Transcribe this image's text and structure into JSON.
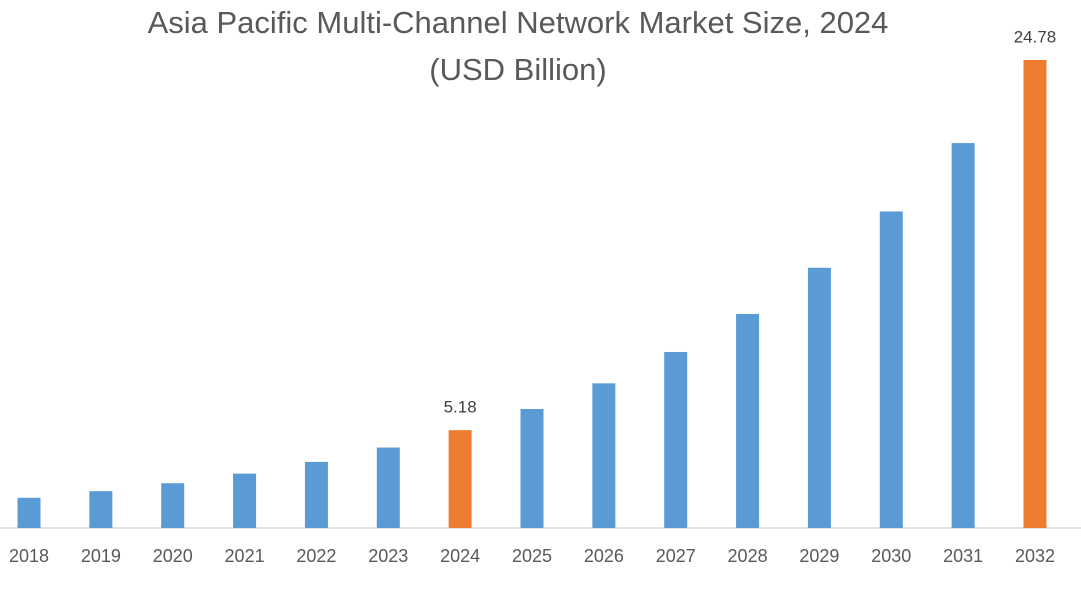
{
  "chart_data": {
    "type": "bar",
    "title": "Asia Pacific Multi-Channel Network Market Size, 2024",
    "subtitle": "(USD Billion)",
    "categories": [
      "2018",
      "2019",
      "2020",
      "2021",
      "2022",
      "2023",
      "2024",
      "2025",
      "2026",
      "2027",
      "2028",
      "2029",
      "2030",
      "2031",
      "2032"
    ],
    "values": [
      1.6,
      1.95,
      2.37,
      2.88,
      3.5,
      4.26,
      5.18,
      6.3,
      7.66,
      9.32,
      11.33,
      13.78,
      16.76,
      20.38,
      24.78
    ],
    "value_labels": [
      null,
      null,
      null,
      null,
      null,
      null,
      "5.18",
      null,
      null,
      null,
      null,
      null,
      null,
      null,
      "24.78"
    ],
    "colors": [
      "#5b9bd5",
      "#5b9bd5",
      "#5b9bd5",
      "#5b9bd5",
      "#5b9bd5",
      "#5b9bd5",
      "#ed7d31",
      "#5b9bd5",
      "#5b9bd5",
      "#5b9bd5",
      "#5b9bd5",
      "#5b9bd5",
      "#5b9bd5",
      "#5b9bd5",
      "#ed7d31"
    ],
    "grid": false
  }
}
